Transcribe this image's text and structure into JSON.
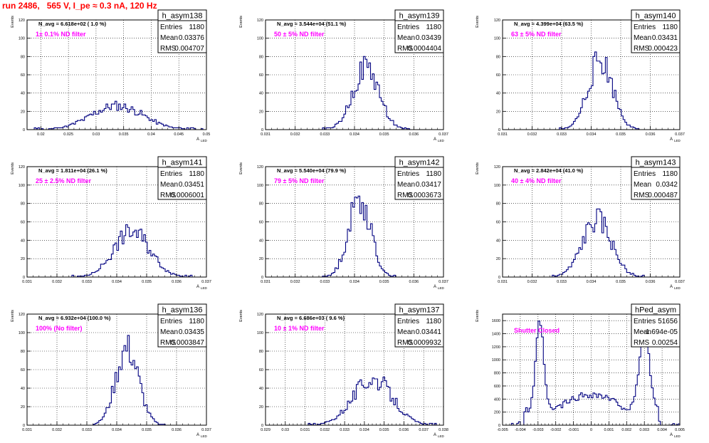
{
  "page": {
    "title": "run 2486,   565 V, I_pe ≈ 0.3 nA, 120 Hz"
  },
  "stats_labels": {
    "entries": "Entries",
    "mean": "Mean",
    "rms": "RMS"
  },
  "ylabel": "Events",
  "xlabel": "A",
  "xlabel_sub": "LED",
  "colors": {
    "histogram": "#000080",
    "filter_text": "#ff00ff",
    "title": "#ff0000",
    "grid": "#000000"
  },
  "chart_data": [
    {
      "type": "bar",
      "name": "h_asym138",
      "entries": "1180",
      "mean": "0.03376",
      "rms": "0.004707",
      "navg": "N_avg = 6.618e+02 ( 1.0 %)",
      "filter": "1± 0.1% ND filter",
      "xlim": [
        0.0175,
        0.05
      ],
      "ylim": [
        0,
        120
      ],
      "xticks": [
        0.02,
        0.025,
        0.03,
        0.035,
        0.04,
        0.045,
        0.05
      ],
      "xtick_labels": [
        "0.02",
        "0.025",
        "0.03",
        "0.035",
        "0.04",
        "0.045",
        "0.05"
      ],
      "yticks": [
        0,
        20,
        40,
        60,
        80,
        100,
        120
      ],
      "mu": 0.0338,
      "sigma": 0.0047,
      "peak": 26,
      "seed": 11,
      "smooth": false
    },
    {
      "type": "bar",
      "name": "h_asym139",
      "entries": "1180",
      "mean": "0.03439",
      "rms": "0.0004404",
      "navg": "N_avg = 3.544e+04 (51.1 %)",
      "filter": "50 ± 5% ND filter",
      "xlim": [
        0.031,
        0.037
      ],
      "ylim": [
        0,
        120
      ],
      "xticks": [
        0.031,
        0.032,
        0.033,
        0.034,
        0.035,
        0.036,
        0.037
      ],
      "xtick_labels": [
        "0.031",
        "0.032",
        "0.033",
        "0.034",
        "0.035",
        "0.036",
        "0.037"
      ],
      "yticks": [
        0,
        20,
        40,
        60,
        80,
        100,
        120
      ],
      "mu": 0.03439,
      "sigma": 0.00044,
      "peak": 68,
      "seed": 22,
      "smooth": false
    },
    {
      "type": "bar",
      "name": "h_asym140",
      "entries": "1180",
      "mean": "0.03431",
      "rms": "0.000423",
      "navg": "N_avg = 4.399e+04 (63.5 %)",
      "filter": "63 ± 5% ND filter",
      "xlim": [
        0.031,
        0.037
      ],
      "ylim": [
        0,
        120
      ],
      "xticks": [
        0.031,
        0.032,
        0.033,
        0.034,
        0.035,
        0.036,
        0.037
      ],
      "xtick_labels": [
        "0.031",
        "0.032",
        "0.033",
        "0.034",
        "0.035",
        "0.036",
        "0.037"
      ],
      "yticks": [
        0,
        20,
        40,
        60,
        80,
        100,
        120
      ],
      "mu": 0.03431,
      "sigma": 0.00042,
      "peak": 76,
      "seed": 33,
      "smooth": false
    },
    {
      "type": "bar",
      "name": "h_asym141",
      "entries": "1180",
      "mean": "0.03451",
      "rms": "0.0006001",
      "navg": "N_avg = 1.811e+04 (26.1 %)",
      "filter": "25 ± 2.5% ND filter",
      "xlim": [
        0.031,
        0.037
      ],
      "ylim": [
        0,
        120
      ],
      "xticks": [
        0.031,
        0.032,
        0.033,
        0.034,
        0.035,
        0.036,
        0.037
      ],
      "xtick_labels": [
        "0.031",
        "0.032",
        "0.033",
        "0.034",
        "0.035",
        "0.036",
        "0.037"
      ],
      "yticks": [
        0,
        20,
        40,
        60,
        80,
        100,
        120
      ],
      "mu": 0.03451,
      "sigma": 0.0006,
      "peak": 50,
      "seed": 44,
      "smooth": false
    },
    {
      "type": "bar",
      "name": "h_asym142",
      "entries": "1180",
      "mean": "0.03417",
      "rms": "0.0003673",
      "navg": "N_avg = 5.540e+04 (79.9 %)",
      "filter": "79 ± 5% ND filter",
      "xlim": [
        0.031,
        0.037
      ],
      "ylim": [
        0,
        120
      ],
      "xticks": [
        0.031,
        0.032,
        0.033,
        0.034,
        0.035,
        0.036,
        0.037
      ],
      "xtick_labels": [
        "0.031",
        "0.032",
        "0.033",
        "0.034",
        "0.035",
        "0.036",
        "0.037"
      ],
      "yticks": [
        0,
        20,
        40,
        60,
        80,
        100,
        120
      ],
      "mu": 0.03417,
      "sigma": 0.00037,
      "peak": 86,
      "seed": 55,
      "smooth": false
    },
    {
      "type": "bar",
      "name": "h_asym143",
      "entries": "1180",
      "mean": "0.0342",
      "rms": "0.000487",
      "navg": "N_avg = 2.842e+04 (41.0 %)",
      "filter": "40 ± 4% ND filter",
      "xlim": [
        0.031,
        0.037
      ],
      "ylim": [
        0,
        120
      ],
      "xticks": [
        0.031,
        0.032,
        0.033,
        0.034,
        0.035,
        0.036,
        0.037
      ],
      "xtick_labels": [
        "0.031",
        "0.032",
        "0.033",
        "0.034",
        "0.035",
        "0.036",
        "0.037"
      ],
      "yticks": [
        0,
        20,
        40,
        60,
        80,
        100,
        120
      ],
      "mu": 0.0342,
      "sigma": 0.00049,
      "peak": 62,
      "seed": 66,
      "smooth": false
    },
    {
      "type": "bar",
      "name": "h_asym136",
      "entries": "1180",
      "mean": "0.03435",
      "rms": "0.0003847",
      "navg": "N_avg = 6.932e+04 (100.0 %)",
      "filter": "100% (No filter)",
      "xlim": [
        0.031,
        0.037
      ],
      "ylim": [
        0,
        120
      ],
      "xticks": [
        0.031,
        0.032,
        0.033,
        0.034,
        0.035,
        0.036,
        0.037
      ],
      "xtick_labels": [
        "0.031",
        "0.032",
        "0.033",
        "0.034",
        "0.035",
        "0.036",
        "0.037"
      ],
      "yticks": [
        0,
        20,
        40,
        60,
        80,
        100,
        120
      ],
      "mu": 0.03435,
      "sigma": 0.00038,
      "peak": 82,
      "seed": 77,
      "smooth": false
    },
    {
      "type": "bar",
      "name": "h_asym137",
      "entries": "1180",
      "mean": "0.03441",
      "rms": "0.0009932",
      "navg": "N_avg = 6.686e+03 ( 9.6 %)",
      "filter": "10 ± 1% ND filter",
      "xlim": [
        0.029,
        0.038
      ],
      "ylim": [
        0,
        120
      ],
      "xticks": [
        0.029,
        0.03,
        0.031,
        0.032,
        0.033,
        0.034,
        0.035,
        0.036,
        0.037,
        0.038
      ],
      "xtick_labels": [
        "0.029",
        "0.03",
        "0.031",
        "0.032",
        "0.033",
        "0.034",
        "0.035",
        "0.036",
        "0.037",
        "0.038"
      ],
      "yticks": [
        0,
        20,
        40,
        60,
        80,
        100,
        120
      ],
      "mu": 0.03441,
      "sigma": 0.00099,
      "peak": 50,
      "seed": 88,
      "smooth": false
    },
    {
      "type": "bar",
      "name": "hPed_asym",
      "entries": "51656",
      "mean": "-1.694e-05",
      "rms": "0.00254",
      "navg": "",
      "filter": "Shutter Closed",
      "xlim": [
        -0.005,
        0.005
      ],
      "ylim": [
        0,
        1700
      ],
      "xticks": [
        -0.005,
        -0.004,
        -0.003,
        -0.002,
        -0.001,
        0,
        0.001,
        0.002,
        0.003,
        0.004,
        0.005
      ],
      "xtick_labels": [
        "-0.005",
        "-0.004",
        "-0.003",
        "-0.002",
        "-0.001",
        "0",
        "0.001",
        "0.002",
        "0.003",
        "0.004",
        "0.005"
      ],
      "yticks": [
        0,
        200,
        400,
        600,
        800,
        1000,
        1200,
        1400,
        1600
      ],
      "seed": 99,
      "smooth": true
    }
  ]
}
